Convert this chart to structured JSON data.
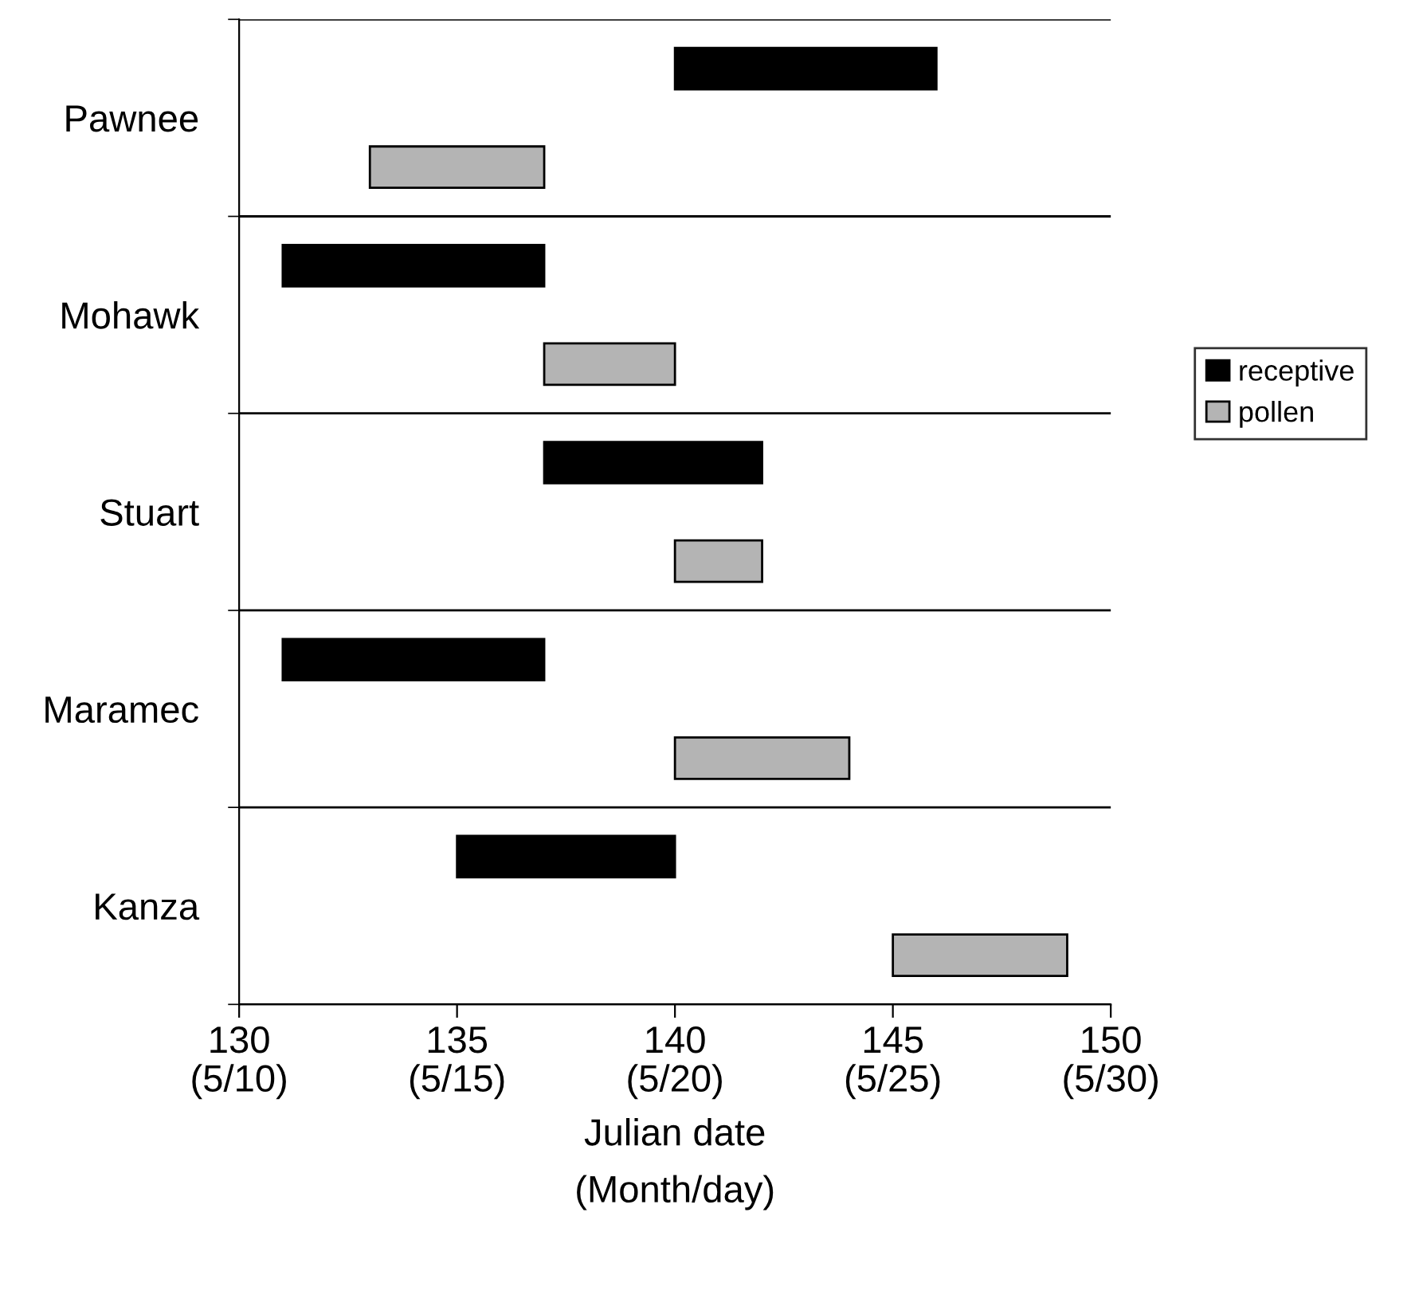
{
  "chart_data": {
    "type": "bar",
    "orientation": "horizontal",
    "xlabel": "Julian date\n(Month/day)",
    "categories": [
      "Pawnee",
      "Mohawk",
      "Stuart",
      "Maramec",
      "Kanza"
    ],
    "series": [
      {
        "name": "receptive",
        "color": "#000000",
        "base": [
          140,
          131,
          137,
          131,
          135
        ],
        "values": [
          6,
          6,
          5,
          6,
          5
        ]
      },
      {
        "name": "pollen",
        "color": "#b4b4b4",
        "base": [
          133,
          137,
          140,
          140,
          145
        ],
        "values": [
          4,
          3,
          2,
          4,
          4
        ]
      }
    ],
    "xlim": [
      130,
      150
    ],
    "xticks": [
      130,
      135,
      140,
      145,
      150
    ],
    "annotations": [
      "(5/10)",
      "(5/15)",
      "(5/20)",
      "(5/25)",
      "(5/30)"
    ],
    "grid": "y",
    "legend": "right"
  }
}
